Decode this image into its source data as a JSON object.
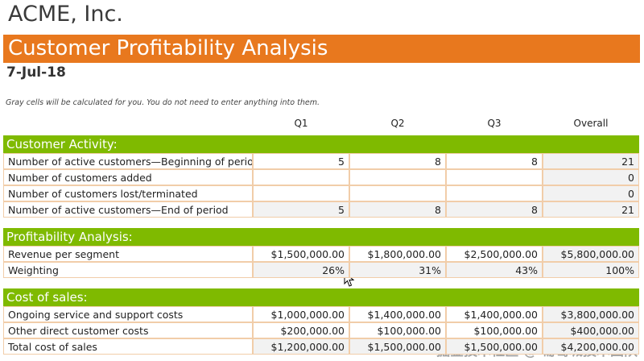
{
  "header": {
    "company": "ACME, Inc.",
    "title": "Customer Profitability Analysis",
    "date": "7-Jul-18",
    "note": "Gray cells will be calculated for you. You do not need to enter anything into them."
  },
  "table": {
    "columns": [
      "Q1",
      "Q2",
      "Q3",
      "Overall"
    ],
    "sections": [
      {
        "title": "Customer Activity:",
        "rows": [
          {
            "label": "Number of active customers—Beginning of period",
            "cells": [
              "5",
              "8",
              "8",
              "21"
            ]
          },
          {
            "label": "Number of customers added",
            "cells": [
              null,
              null,
              null,
              "0"
            ]
          },
          {
            "label": "Number of customers lost/terminated",
            "cells": [
              null,
              null,
              null,
              "0"
            ]
          },
          {
            "label": "Number of active customers—End of period",
            "cells": [
              "5",
              "8",
              "8",
              "21"
            ],
            "calculated": true
          }
        ]
      },
      {
        "title": "Profitability Analysis:",
        "rows": [
          {
            "label": "Revenue per segment",
            "cells": [
              "$1,500,000.00",
              "$1,800,000.00",
              "$2,500,000.00",
              "$5,800,000.00"
            ]
          },
          {
            "label": "Weighting",
            "cells": [
              "26%",
              "31%",
              "43%",
              "100%"
            ],
            "calculated": true
          }
        ]
      },
      {
        "title": "Cost of sales:",
        "rows": [
          {
            "label": "Ongoing service and support costs",
            "cells": [
              "$1,000,000.00",
              "$1,400,000.00",
              "$1,400,000.00",
              "$3,800,000.00"
            ]
          },
          {
            "label": "Other direct customer costs",
            "cells": [
              "$200,000.00",
              "$100,000.00",
              "$100,000.00",
              "$400,000.00"
            ]
          },
          {
            "label": "Total cost of sales",
            "cells": [
              "$1,200,000.00",
              "$1,500,000.00",
              "$1,500,000.00",
              "$4,200,000.00"
            ],
            "calculated": true
          }
        ]
      }
    ]
  },
  "watermark": "掘金技术社区 @ 葡萄城技术团队"
}
